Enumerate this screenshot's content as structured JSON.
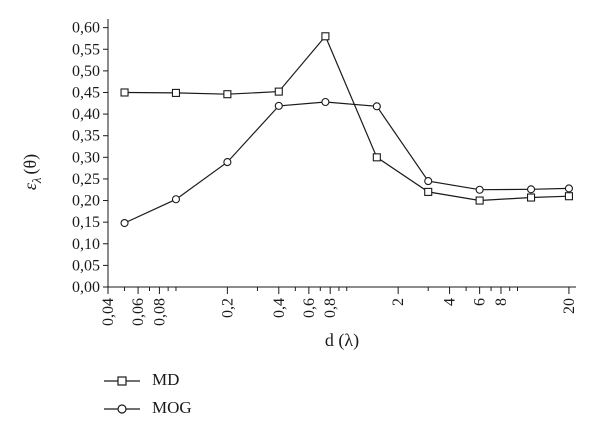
{
  "chart_data": {
    "type": "line",
    "title": "",
    "xlabel": "d (λ)",
    "ylabel_symbol": "ε",
    "ylabel_subscript": "λ",
    "ylabel_argument": "(θ)",
    "x_scale": "log",
    "xlim": [
      0.04,
      22
    ],
    "ylim": [
      0,
      0.62
    ],
    "x_ticks": [
      {
        "value": 0.04,
        "label": "0,04"
      },
      {
        "value": 0.06,
        "label": "0,06"
      },
      {
        "value": 0.08,
        "label": "0,08"
      },
      {
        "value": 0.2,
        "label": "0,2"
      },
      {
        "value": 0.4,
        "label": "0,4"
      },
      {
        "value": 0.6,
        "label": "0,6"
      },
      {
        "value": 0.8,
        "label": "0,8"
      },
      {
        "value": 2,
        "label": "2"
      },
      {
        "value": 4,
        "label": "4"
      },
      {
        "value": 6,
        "label": "6"
      },
      {
        "value": 8,
        "label": "8"
      },
      {
        "value": 20,
        "label": "20"
      }
    ],
    "x_minor_ticks": [
      0.05,
      0.07,
      0.09,
      0.1,
      0.3,
      0.5,
      0.7,
      0.9,
      1,
      3,
      5,
      7,
      9,
      10
    ],
    "y_ticks": [
      {
        "value": 0.0,
        "label": "0,00"
      },
      {
        "value": 0.05,
        "label": "0,05"
      },
      {
        "value": 0.1,
        "label": "0,10"
      },
      {
        "value": 0.15,
        "label": "0,15"
      },
      {
        "value": 0.2,
        "label": "0,20"
      },
      {
        "value": 0.25,
        "label": "0,25"
      },
      {
        "value": 0.3,
        "label": "0,30"
      },
      {
        "value": 0.35,
        "label": "0,35"
      },
      {
        "value": 0.4,
        "label": "0,40"
      },
      {
        "value": 0.45,
        "label": "0,45"
      },
      {
        "value": 0.5,
        "label": "0,50"
      },
      {
        "value": 0.55,
        "label": "0,55"
      },
      {
        "value": 0.6,
        "label": "0,60"
      }
    ],
    "grid": false,
    "legend_position": "below",
    "series": [
      {
        "name": "MD",
        "marker": "square",
        "color": "#1a1a1a",
        "points": [
          {
            "x": 0.05,
            "y": 0.45
          },
          {
            "x": 0.1,
            "y": 0.449
          },
          {
            "x": 0.2,
            "y": 0.446
          },
          {
            "x": 0.4,
            "y": 0.452
          },
          {
            "x": 0.75,
            "y": 0.58
          },
          {
            "x": 1.5,
            "y": 0.3
          },
          {
            "x": 3,
            "y": 0.22
          },
          {
            "x": 6,
            "y": 0.2
          },
          {
            "x": 12,
            "y": 0.207
          },
          {
            "x": 20,
            "y": 0.21
          }
        ]
      },
      {
        "name": "MOG",
        "marker": "circle",
        "color": "#1a1a1a",
        "points": [
          {
            "x": 0.05,
            "y": 0.148
          },
          {
            "x": 0.1,
            "y": 0.203
          },
          {
            "x": 0.2,
            "y": 0.289
          },
          {
            "x": 0.4,
            "y": 0.419
          },
          {
            "x": 0.75,
            "y": 0.428
          },
          {
            "x": 1.5,
            "y": 0.418
          },
          {
            "x": 3,
            "y": 0.245
          },
          {
            "x": 6,
            "y": 0.225
          },
          {
            "x": 12,
            "y": 0.226
          },
          {
            "x": 20,
            "y": 0.228
          }
        ]
      }
    ]
  }
}
